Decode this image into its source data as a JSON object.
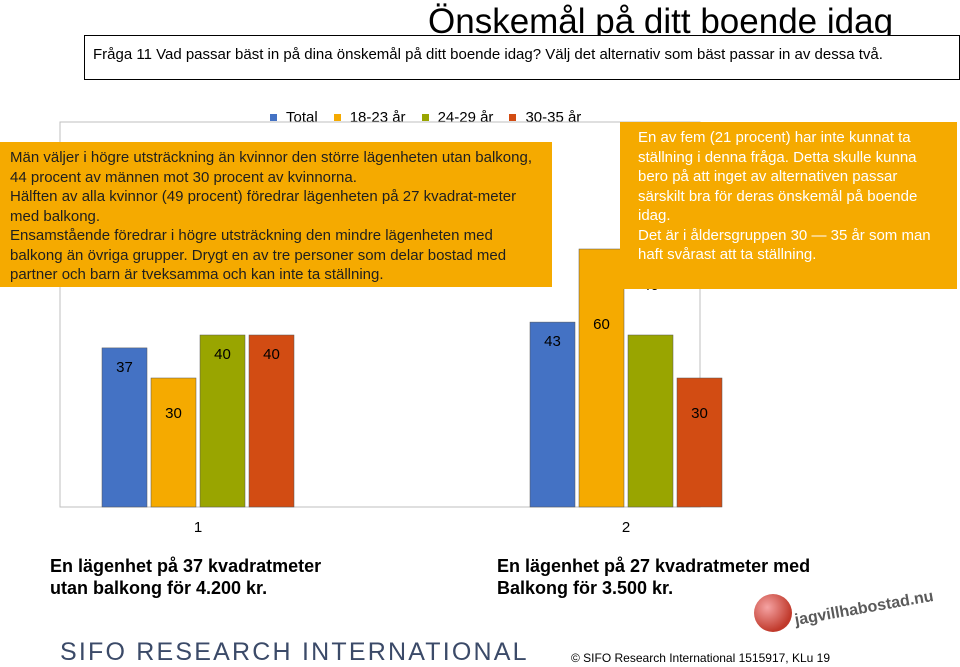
{
  "page": {
    "title": "Önskemål på ditt boende idag",
    "question": "Fråga 11 Vad passar bäst in på dina önskemål på ditt boende idag? Välj det alternativ som bäst passar in av dessa två."
  },
  "colors": {
    "callout": "#f5aa00",
    "total": "#4472c4",
    "age_18_23": "#f5aa00",
    "age_24_29": "#99a500",
    "age_30_35": "#d24c13"
  },
  "legend": [
    {
      "label": "Total",
      "color": "#4472c4"
    },
    {
      "label": "18-23 år",
      "color": "#f5aa00"
    },
    {
      "label": "24-29 år",
      "color": "#99a500"
    },
    {
      "label": "30-35 år",
      "color": "#d24c13"
    }
  ],
  "callouts": {
    "left": [
      "Män väljer i högre utsträckning än kvinnor den större lägenheten utan balkong, 44 procent av männen mot 30 procent av kvinnorna.",
      "Hälften av alla kvinnor (49 procent) föredrar lägenheten på 27 kvadrat-meter med balkong.",
      "Ensamstående föredrar i högre utsträckning den mindre lägenheten med balkong än övriga grupper. Drygt en av tre personer som delar bostad med partner och barn är tveksamma och kan inte ta ställning."
    ],
    "right": [
      "En av fem (21 procent) har inte kunnat ta ställning i denna fråga. Detta skulle kunna bero på att inget av alternativen passar särskilt bra för deras önskemål på boende idag.",
      "Det är i åldersgruppen 30 — 35 år som man haft svårast att ta ställning."
    ]
  },
  "chart_data": {
    "type": "bar",
    "categories": [
      "1",
      "2"
    ],
    "series": [
      {
        "name": "Total",
        "values": [
          37,
          43
        ]
      },
      {
        "name": "18-23 år",
        "values": [
          30,
          60
        ]
      },
      {
        "name": "24-29 år",
        "values": [
          40,
          40
        ]
      },
      {
        "name": "30-35 år",
        "values": [
          40,
          30
        ]
      }
    ],
    "ylim": [
      0,
      100
    ]
  },
  "options": {
    "one": "En lägenhet på 37 kvadratmeter\nutan balkong för 4.200 kr.",
    "two": "En lägenhet på 27 kvadratmeter med\nBalkong för 3.500 kr."
  },
  "brand": {
    "logo_text": "jagvillhabostad.nu",
    "sifo": "SIFO RESEARCH INTERNATIONAL",
    "footer": "©   SIFO Research International 1515917, KLu 19"
  }
}
